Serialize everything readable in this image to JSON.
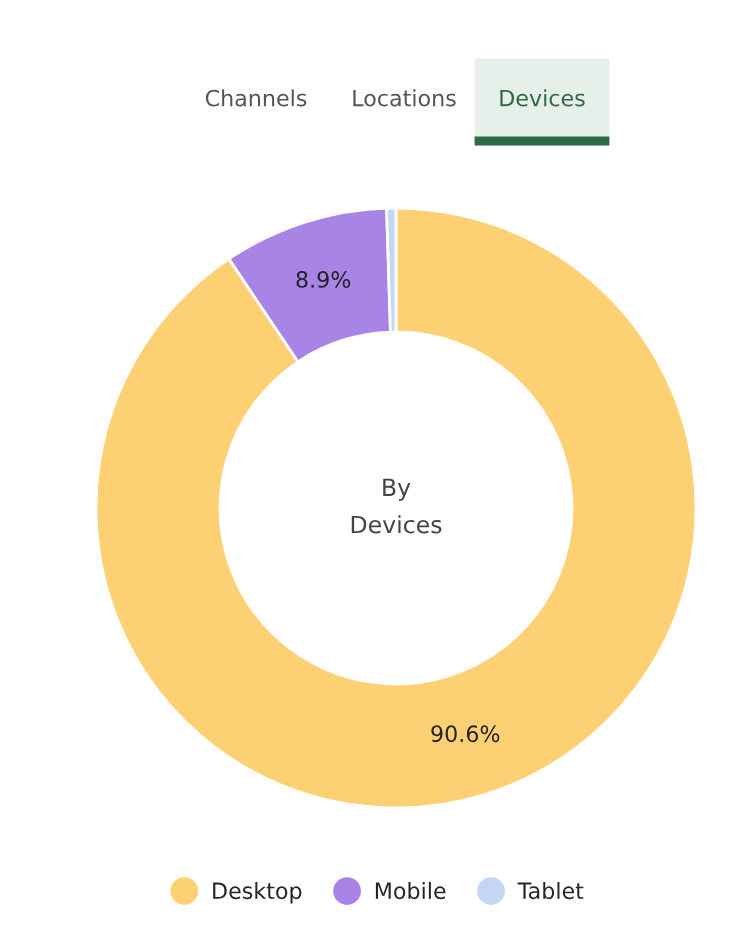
{
  "chart_data": {
    "type": "donut",
    "title": "By\nDevices",
    "annotations": [
      "Channels",
      "Locations",
      "Devices"
    ],
    "categories": [
      "Desktop",
      "Mobile",
      "Tablet"
    ],
    "values": [
      90.6,
      8.9,
      0.5
    ],
    "value_labels": [
      "90.6%",
      "8.9%",
      null
    ],
    "colors": [
      "#fdd073",
      "#a884e6",
      "#c5d6f5"
    ],
    "legend": "bottom"
  }
}
